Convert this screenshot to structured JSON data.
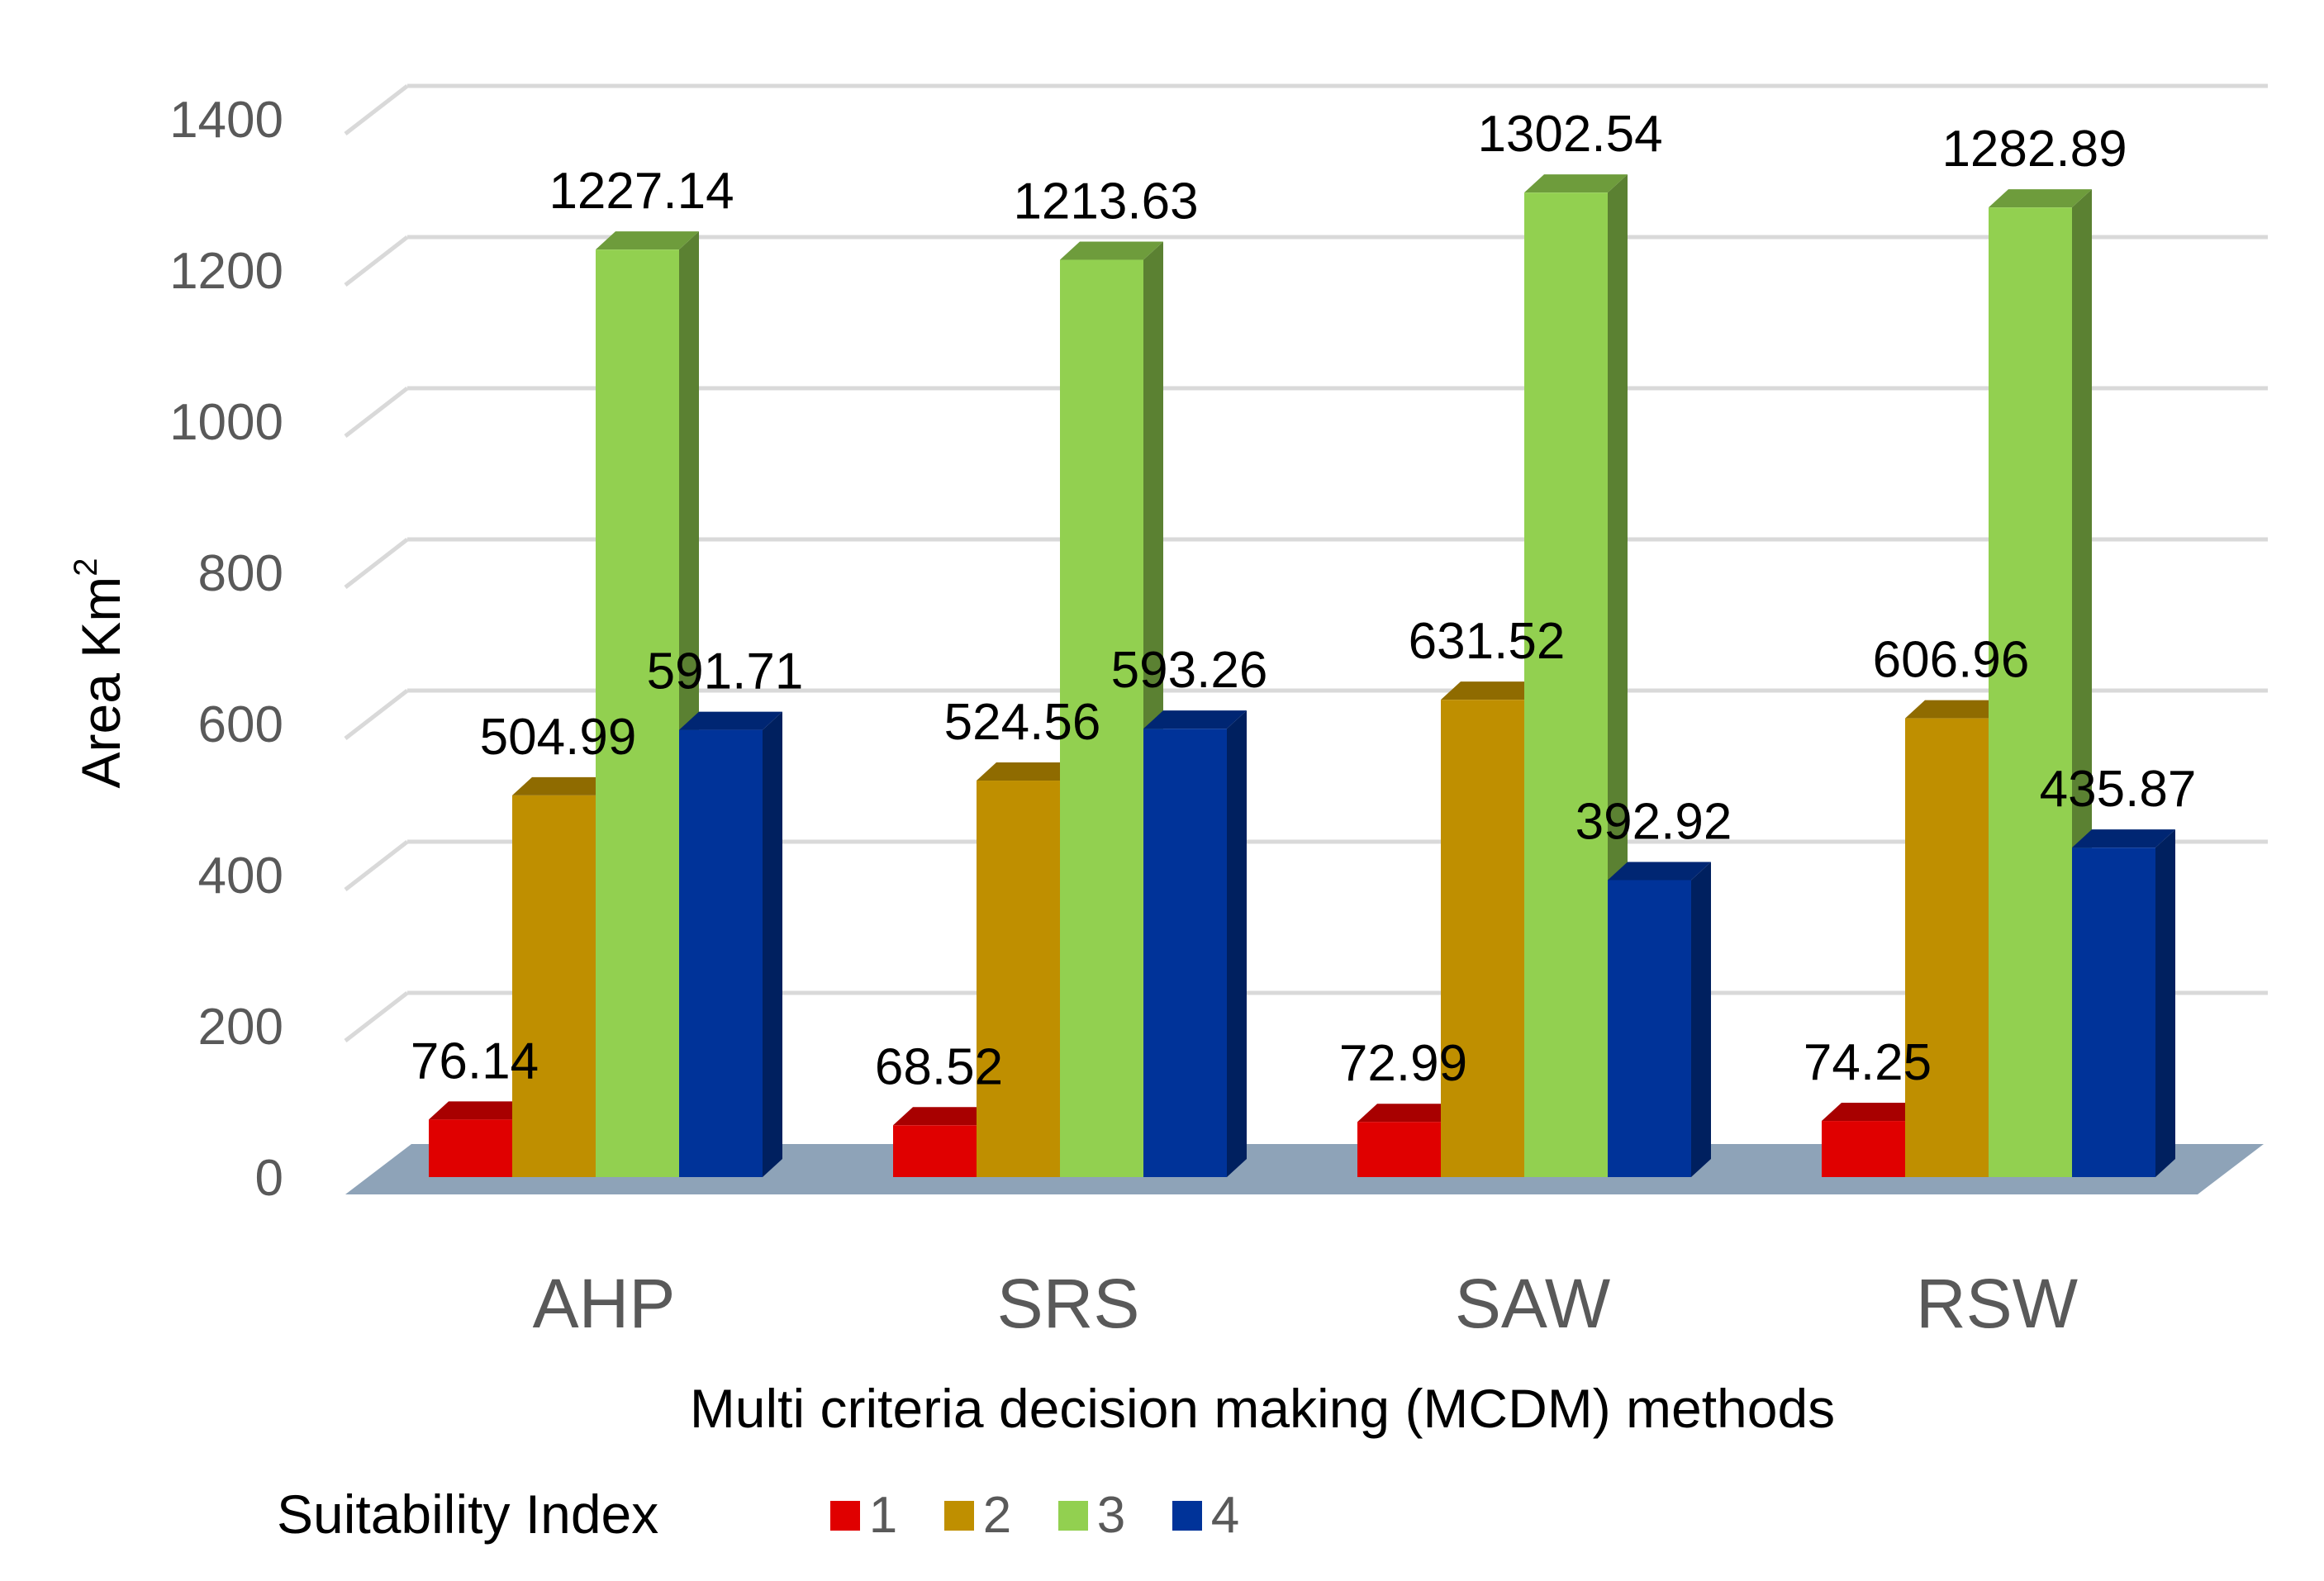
{
  "chart_data": {
    "type": "bar",
    "style": "3d-clustered-column",
    "categories": [
      "AHP",
      "SRS",
      "SAW",
      "RSW"
    ],
    "series": [
      {
        "name": "1",
        "color": "#e00000",
        "values": [
          76.14,
          68.52,
          72.99,
          74.25
        ]
      },
      {
        "name": "2",
        "color": "#bf8f00",
        "values": [
          504.99,
          524.56,
          631.52,
          606.96
        ]
      },
      {
        "name": "3",
        "color": "#92d050",
        "values": [
          1227.14,
          1213.63,
          1302.54,
          1282.89
        ]
      },
      {
        "name": "4",
        "color": "#003399",
        "values": [
          591.71,
          593.26,
          392.92,
          435.87
        ]
      }
    ],
    "data_labels": [
      [
        "76.14",
        "504.99",
        "1227.14",
        "591.71"
      ],
      [
        "68.52",
        "524.56",
        "1213.63",
        "593.26"
      ],
      [
        "72.99",
        "631.52",
        "1302.54",
        "392.92"
      ],
      [
        "74.25",
        "606.96",
        "1282.89",
        "435.87"
      ]
    ],
    "y_ticks": [
      "0",
      "200",
      "400",
      "600",
      "800",
      "1000",
      "1200",
      "1400"
    ],
    "ylim": [
      0,
      1400
    ],
    "xlabel": "Multi criteria decision making (MCDM) methods",
    "ylabel": "Area Km",
    "ylabel_superscript": "2",
    "legend_title": "Suitability Index",
    "legend_position": "bottom",
    "grid": true,
    "floor_color": "#8ea3b8",
    "gridline_color": "#d9d9d9"
  }
}
